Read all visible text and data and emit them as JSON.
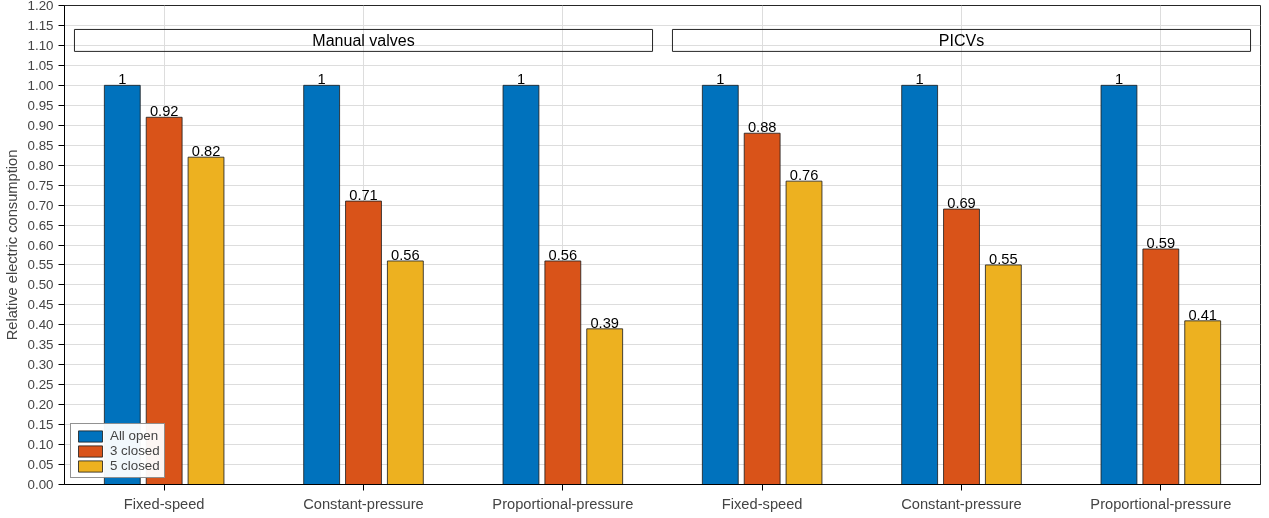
{
  "chart_data": {
    "type": "bar",
    "ylabel": "Relative electric consumption",
    "categories": [
      "Fixed-speed",
      "Constant-pressure",
      "Proportional-pressure",
      "Fixed-speed",
      "Constant-pressure",
      "Proportional-pressure"
    ],
    "series": [
      {
        "name": "All open",
        "color": "#0072bd",
        "values": [
          1,
          1,
          1,
          1,
          1,
          1
        ]
      },
      {
        "name": "3 closed",
        "color": "#d95319",
        "values": [
          0.92,
          0.71,
          0.56,
          0.88,
          0.69,
          0.59
        ]
      },
      {
        "name": "5 closed",
        "color": "#edb120",
        "values": [
          0.82,
          0.56,
          0.39,
          0.76,
          0.55,
          0.41
        ]
      }
    ],
    "ylim": [
      0,
      1.2
    ],
    "yticks": [
      {
        "value": 0,
        "label": "0.00"
      },
      {
        "value": 0.05,
        "label": "0.05"
      },
      {
        "value": 0.1,
        "label": "0.10"
      },
      {
        "value": 0.15,
        "label": "0.15"
      },
      {
        "value": 0.2,
        "label": "0.20"
      },
      {
        "value": 0.25,
        "label": "0.25"
      },
      {
        "value": 0.3,
        "label": "0.30"
      },
      {
        "value": 0.35,
        "label": "0.35"
      },
      {
        "value": 0.4,
        "label": "0.40"
      },
      {
        "value": 0.45,
        "label": "0.45"
      },
      {
        "value": 0.5,
        "label": "0.50"
      },
      {
        "value": 0.55,
        "label": "0.55"
      },
      {
        "value": 0.6,
        "label": "0.60"
      },
      {
        "value": 0.65,
        "label": "0.65"
      },
      {
        "value": 0.7,
        "label": "0.70"
      },
      {
        "value": 0.75,
        "label": "0.75"
      },
      {
        "value": 0.8,
        "label": "0.80"
      },
      {
        "value": 0.85,
        "label": "0.85"
      },
      {
        "value": 0.9,
        "label": "0.90"
      },
      {
        "value": 0.95,
        "label": "0.95"
      },
      {
        "value": 1,
        "label": "1.00"
      },
      {
        "value": 1.05,
        "label": "1.05"
      },
      {
        "value": 1.1,
        "label": "1.10"
      },
      {
        "value": 1.15,
        "label": "1.15"
      },
      {
        "value": 1.2,
        "label": "1.20"
      }
    ],
    "annotations": [
      "Manual valves",
      "PICVs"
    ],
    "data_labels": true,
    "grid": true,
    "legend": "bottom left"
  }
}
